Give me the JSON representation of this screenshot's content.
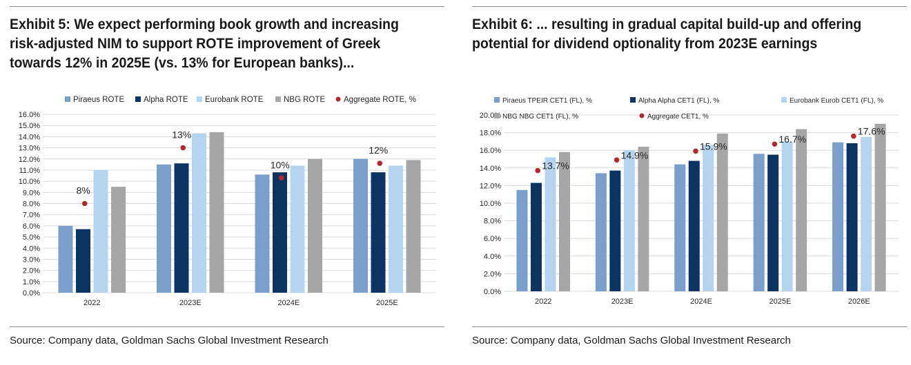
{
  "colors": {
    "piraeus": "#7a9fcb",
    "alpha": "#0b3462",
    "eurobank": "#b4d4ef",
    "nbg": "#a6a6a6",
    "aggregate": "#b3282d",
    "grid": "#d9d9d9"
  },
  "left": {
    "title": "Exhibit 5: We expect performing book growth and increasing risk-adjusted NIM to support ROTE improvement of Greek towards 12% in 2025E (vs. 13% for European banks)...",
    "source": "Source: Company data, Goldman Sachs Global Investment Research"
  },
  "right": {
    "title": "Exhibit 6: ... resulting in gradual capital build-up and offering potential for dividend optionality from 2023E earnings",
    "source": "Source: Company data, Goldman Sachs Global Investment Research"
  },
  "chart_data": [
    {
      "type": "bar",
      "title": "ROTE",
      "categories": [
        "2022",
        "2023E",
        "2024E",
        "2025E"
      ],
      "series": [
        {
          "name": "Piraeus ROTE",
          "key": "piraeus",
          "values": [
            6.0,
            11.5,
            10.6,
            12.0
          ]
        },
        {
          "name": "Alpha ROTE",
          "key": "alpha",
          "values": [
            5.7,
            11.6,
            10.8,
            10.8
          ]
        },
        {
          "name": "Eurobank ROTE",
          "key": "eurobank",
          "values": [
            11.0,
            14.3,
            11.4,
            11.4
          ]
        },
        {
          "name": "NBG ROTE",
          "key": "nbg",
          "values": [
            9.5,
            14.4,
            12.0,
            11.9
          ]
        }
      ],
      "aggregate": {
        "name": "Aggregate ROTE, %",
        "values": [
          8.0,
          13.0,
          10.3,
          11.6
        ],
        "labels": [
          "8%",
          "13%",
          "10%",
          "12%"
        ]
      },
      "ylim": [
        0,
        16
      ],
      "ystep": 1,
      "yticks": [
        "0.0%",
        "1.0%",
        "2.0%",
        "3.0%",
        "4.0%",
        "5.0%",
        "6.0%",
        "7.0%",
        "8.0%",
        "9.0%",
        "10.0%",
        "11.0%",
        "12.0%",
        "13.0%",
        "14.0%",
        "15.0%",
        "16.0%"
      ],
      "legend": [
        "Piraeus ROTE",
        "Alpha ROTE",
        "Eurobank ROTE",
        "NBG ROTE",
        "Aggregate ROTE, %"
      ],
      "legend_position": "top",
      "grid": true
    },
    {
      "type": "bar",
      "title": "CET1 (FL)",
      "categories": [
        "2022",
        "2023E",
        "2024E",
        "2025E",
        "2026E"
      ],
      "series": [
        {
          "name": "Piraeus TPEIR CET1 (FL), %",
          "key": "piraeus",
          "values": [
            11.5,
            13.4,
            14.4,
            15.6,
            16.9
          ]
        },
        {
          "name": "Alpha Alpha CET1 (FL), %",
          "key": "alpha",
          "values": [
            12.3,
            13.7,
            14.8,
            15.5,
            16.8
          ]
        },
        {
          "name": "Eurobank Eurob CET1 (FL), %",
          "key": "eurobank",
          "values": [
            15.2,
            16.0,
            16.6,
            17.0,
            17.5
          ]
        },
        {
          "name": "NBG NBG CET1 (FL), %",
          "key": "nbg",
          "values": [
            15.8,
            16.4,
            17.9,
            18.4,
            19.0
          ]
        }
      ],
      "aggregate": {
        "name": "Aggregate CET1, %",
        "values": [
          13.7,
          14.9,
          15.9,
          16.7,
          17.6
        ],
        "labels": [
          "13.7%",
          "14.9%",
          "15.9%",
          "16.7%",
          "17.6%"
        ]
      },
      "ylim": [
        0,
        20
      ],
      "ystep": 2,
      "yticks": [
        "0.0%",
        "2.0%",
        "4.0%",
        "6.0%",
        "8.0%",
        "10.0%",
        "12.0%",
        "14.0%",
        "16.0%",
        "18.0%",
        "20.0%"
      ],
      "legend": [
        "Piraeus TPEIR CET1 (FL), %",
        "Alpha Alpha CET1 (FL), %",
        "Eurobank Eurob CET1 (FL), %",
        "NBG NBG CET1 (FL), %",
        "Aggregate CET1, %"
      ],
      "legend_position": "top",
      "grid": true
    }
  ]
}
